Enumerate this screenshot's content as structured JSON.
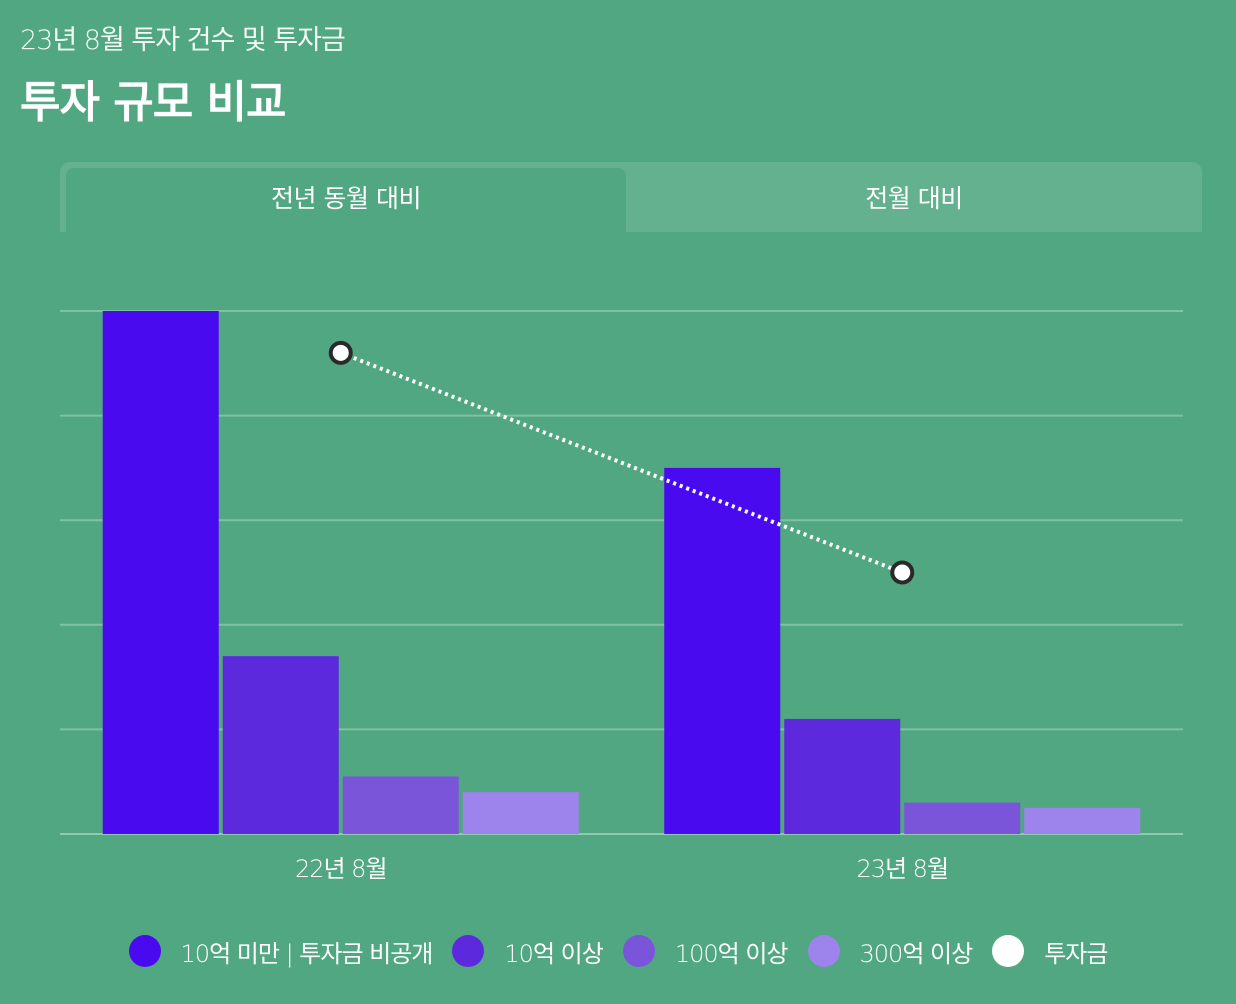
{
  "header": {
    "subtitle": "23년 8월 투자 건수 및 투자금",
    "title": "투자 규모 비교"
  },
  "tabs": [
    {
      "label": "전년 동월 대비",
      "active": true
    },
    {
      "label": "전월 대비",
      "active": false
    }
  ],
  "colors": {
    "background": "#51a782",
    "tab_bar": "#64b18f",
    "gridline": "#7ec2a3",
    "series": [
      "#4a0aef",
      "#5c2adc",
      "#7a55da",
      "#9d83ec"
    ],
    "line": "#ffffff"
  },
  "chart_data": {
    "type": "bar",
    "categories": [
      "22년 8월",
      "23년 8월"
    ],
    "series": [
      {
        "name": "10억 미만 | 투자금 비공개",
        "values": [
          5.0,
          3.5
        ]
      },
      {
        "name": "10억 이상",
        "values": [
          1.7,
          1.1
        ]
      },
      {
        "name": "100억 이상",
        "values": [
          0.55,
          0.3
        ]
      },
      {
        "name": "300억 이상",
        "values": [
          0.4,
          0.25
        ]
      }
    ],
    "line_series": {
      "name": "투자금",
      "values": [
        4.6,
        2.5
      ],
      "style": "dotted"
    },
    "ylim": [
      0,
      5
    ],
    "grid": true,
    "y_tick_labels_shown": false,
    "legend_position": "bottom"
  }
}
